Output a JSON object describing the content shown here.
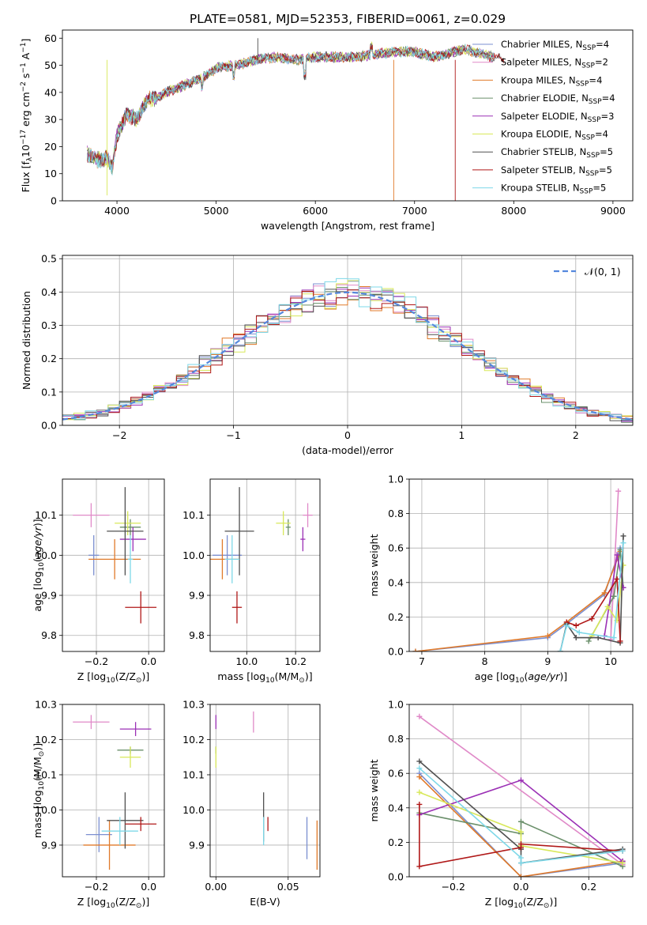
{
  "title": "PLATE=0581, MJD=52353, FIBERID=0061, z=0.029",
  "colors": {
    "Chabrier MILES": "#7b8fd0",
    "Salpeter MILES": "#e08ac8",
    "Kroupa MILES": "#e07a2a",
    "Chabrier ELODIE": "#6a8f6a",
    "Salpeter ELODIE": "#9b30b5",
    "Kroupa ELODIE": "#d8e85a",
    "Chabrier STELIB": "#505050",
    "Salpeter STELIB": "#b01818",
    "Kroupa STELIB": "#7ed8e8"
  },
  "legend": {
    "prefix": "N",
    "sub": "SSP",
    "entries": [
      {
        "name": "Chabrier MILES",
        "n": "4"
      },
      {
        "name": "Salpeter MILES",
        "n": "2"
      },
      {
        "name": "Kroupa MILES",
        "n": "4"
      },
      {
        "name": "Chabrier ELODIE",
        "n": "4"
      },
      {
        "name": "Salpeter ELODIE",
        "n": "3"
      },
      {
        "name": "Kroupa ELODIE",
        "n": "4"
      },
      {
        "name": "Chabrier STELIB",
        "n": "5"
      },
      {
        "name": "Salpeter STELIB",
        "n": "5"
      },
      {
        "name": "Kroupa STELIB",
        "n": "5"
      }
    ]
  },
  "normal_label": "𝒩(0, 1)",
  "chart_data": [
    {
      "id": "spectrum",
      "type": "line",
      "xlabel": "wavelength [Angstrom, rest frame]",
      "ylabel": {
        "a": "Flux [f",
        "b": "λ",
        "c": "10",
        "d": "−17",
        "e": " erg cm",
        "f": "−2",
        "g": " s",
        "h": "−1",
        "i": " A",
        "j": "−1",
        "k": "]"
      },
      "xlim": [
        3450,
        9200
      ],
      "ylim": [
        0,
        63
      ],
      "xticks": [
        "4000",
        "5000",
        "6000",
        "7000",
        "8000",
        "9000"
      ],
      "yticks": [
        "0",
        "10",
        "20",
        "30",
        "40",
        "50",
        "60"
      ],
      "continuum": {
        "x": [
          3700,
          3800,
          3900,
          3950,
          4000,
          4100,
          4200,
          4300,
          4400,
          4500,
          4700,
          4900,
          5000,
          5200,
          5400,
          5600,
          5800,
          6000,
          6200,
          6400,
          6600,
          6800,
          7000,
          7200,
          7300,
          7400,
          7500,
          7600,
          7700,
          7800,
          7900
        ],
        "y": [
          17,
          15,
          16,
          12,
          24,
          32,
          30,
          37,
          38,
          40,
          43,
          46,
          49,
          50,
          52,
          53,
          52,
          53,
          53,
          53,
          54,
          55,
          55,
          53,
          54,
          55,
          56,
          55,
          54,
          53,
          52
        ]
      },
      "x_end": [
        7800,
        7800,
        7800,
        7800,
        7800,
        7800,
        7900,
        7900,
        7800
      ],
      "spikes": [
        {
          "x": 5420,
          "y": 60,
          "series": "Chabrier STELIB"
        },
        {
          "x": 6790,
          "y": 0,
          "series": "Kroupa MILES"
        },
        {
          "x": 7410,
          "y": 0,
          "series": "Salpeter STELIB"
        },
        {
          "x": 3900,
          "y": 2,
          "series": "Kroupa ELODIE"
        }
      ]
    },
    {
      "id": "residuals",
      "type": "step",
      "xlabel": "(data-model)/error",
      "ylabel": "Normed distribution",
      "xlim": [
        -2.5,
        2.5
      ],
      "ylim": [
        0,
        0.51
      ],
      "xticks": [
        "−2",
        "−1",
        "0",
        "1",
        "2"
      ],
      "yticks": [
        "0.0",
        "0.1",
        "0.2",
        "0.3",
        "0.4",
        "0.5"
      ],
      "bin_width": 0.1
    },
    {
      "id": "age-vs-z",
      "type": "errorbar",
      "xlabel": {
        "a": "Z [log",
        "b": "10",
        "c": "(Z/Z",
        "d": "⊙",
        "e": ")]"
      },
      "ylabel": {
        "a": "age  [log",
        "b": "10",
        "c": "(",
        "d": "age/yr",
        "e": ")]"
      },
      "xlim": [
        -0.33,
        0.06
      ],
      "ylim": [
        9.76,
        10.19
      ],
      "xticks": [
        "−0.2",
        "0.0"
      ],
      "yticks": [
        "9.8",
        "9.9",
        "10.0",
        "10.1"
      ],
      "points": [
        {
          "series": "Chabrier MILES",
          "x": -0.21,
          "xerr": 0.02,
          "y": 10.0,
          "yerr": 0.05
        },
        {
          "series": "Salpeter MILES",
          "x": -0.22,
          "xerr": 0.07,
          "y": 10.1,
          "yerr": 0.03
        },
        {
          "series": "Kroupa MILES",
          "x": -0.13,
          "xerr": 0.1,
          "y": 9.99,
          "yerr": 0.05
        },
        {
          "series": "Chabrier ELODIE",
          "x": -0.07,
          "xerr": 0.04,
          "y": 10.07,
          "yerr": 0.02
        },
        {
          "series": "Salpeter ELODIE",
          "x": -0.06,
          "xerr": 0.05,
          "y": 10.04,
          "yerr": 0.03
        },
        {
          "series": "Kroupa ELODIE",
          "x": -0.08,
          "xerr": 0.05,
          "y": 10.08,
          "yerr": 0.03
        },
        {
          "series": "Chabrier STELIB",
          "x": -0.09,
          "xerr": 0.07,
          "y": 10.06,
          "yerr": 0.11
        },
        {
          "series": "Salpeter STELIB",
          "x": -0.03,
          "xerr": 0.06,
          "y": 9.87,
          "yerr": 0.04
        },
        {
          "series": "Kroupa STELIB",
          "x": -0.07,
          "xerr": 0.01,
          "y": 9.99,
          "yerr": 0.06
        }
      ]
    },
    {
      "id": "age-vs-mass",
      "type": "errorbar",
      "xlabel": {
        "a": "mass [log",
        "b": "10",
        "c": "(M/M",
        "d": "⊙",
        "e": ")]"
      },
      "ylabel": "",
      "xlim": [
        9.85,
        10.3
      ],
      "ylim": [
        9.76,
        10.19
      ],
      "xticks": [
        "10.0",
        "10.2"
      ],
      "yticks": [
        "9.8",
        "9.9",
        "10.0",
        "10.1"
      ],
      "points": [
        {
          "series": "Chabrier MILES",
          "x": 9.92,
          "xerr": 0.06,
          "y": 10.0,
          "yerr": 0.05
        },
        {
          "series": "Salpeter MILES",
          "x": 10.25,
          "xerr": 0.02,
          "y": 10.1,
          "yerr": 0.03
        },
        {
          "series": "Kroupa MILES",
          "x": 9.9,
          "xerr": 0.07,
          "y": 9.99,
          "yerr": 0.05
        },
        {
          "series": "Chabrier ELODIE",
          "x": 10.17,
          "xerr": 0.01,
          "y": 10.07,
          "yerr": 0.02
        },
        {
          "series": "Salpeter ELODIE",
          "x": 10.23,
          "xerr": 0.01,
          "y": 10.04,
          "yerr": 0.03
        },
        {
          "series": "Kroupa ELODIE",
          "x": 10.15,
          "xerr": 0.03,
          "y": 10.08,
          "yerr": 0.03
        },
        {
          "series": "Chabrier STELIB",
          "x": 9.97,
          "xerr": 0.06,
          "y": 10.06,
          "yerr": 0.11
        },
        {
          "series": "Salpeter STELIB",
          "x": 9.96,
          "xerr": 0.02,
          "y": 9.87,
          "yerr": 0.04
        },
        {
          "series": "Kroupa STELIB",
          "x": 9.94,
          "xerr": 0.03,
          "y": 9.99,
          "yerr": 0.06
        }
      ]
    },
    {
      "id": "mass-weight-vs-age",
      "type": "line",
      "xlabel": {
        "a": "age  [log",
        "b": "10",
        "c": "(",
        "d": "age/yr",
        "e": ")]"
      },
      "ylabel": "mass weight",
      "xlim": [
        6.8,
        10.35
      ],
      "ylim": [
        0,
        1
      ],
      "xticks": [
        "7",
        "8",
        "9",
        "10"
      ],
      "yticks": [
        "0.0",
        "0.2",
        "0.4",
        "0.6",
        "0.8",
        "1.0"
      ],
      "series": [
        {
          "name": "Chabrier MILES",
          "x": [
            6.9,
            9.0,
            9.3,
            9.9,
            10.15
          ],
          "y": [
            0.0,
            0.08,
            0.16,
            0.33,
            0.6
          ]
        },
        {
          "name": "Salpeter MILES",
          "x": [
            10.0,
            10.12
          ],
          "y": [
            0.07,
            0.93
          ]
        },
        {
          "name": "Kroupa MILES",
          "x": [
            6.9,
            9.0,
            9.3,
            9.9,
            10.15
          ],
          "y": [
            0.0,
            0.09,
            0.17,
            0.34,
            0.58
          ]
        },
        {
          "name": "Chabrier ELODIE",
          "x": [
            9.65,
            10.05,
            10.15,
            10.2
          ],
          "y": [
            0.06,
            0.32,
            0.59,
            0.37
          ]
        },
        {
          "name": "Salpeter ELODIE",
          "x": [
            9.9,
            10.1,
            10.2
          ],
          "y": [
            0.09,
            0.56,
            0.37
          ]
        },
        {
          "name": "Kroupa ELODIE",
          "x": [
            9.7,
            9.95,
            10.1,
            10.2
          ],
          "y": [
            0.09,
            0.26,
            0.18,
            0.5
          ]
        },
        {
          "name": "Chabrier STELIB",
          "x": [
            9.2,
            9.3,
            9.45,
            9.8,
            10.15,
            10.2
          ],
          "y": [
            0.0,
            0.16,
            0.08,
            0.08,
            0.05,
            0.67
          ]
        },
        {
          "name": "Salpeter STELIB",
          "x": [
            9.3,
            9.45,
            9.7,
            10.1,
            10.15
          ],
          "y": [
            0.17,
            0.15,
            0.19,
            0.42,
            0.06
          ]
        },
        {
          "name": "Kroupa STELIB",
          "x": [
            9.2,
            9.3,
            9.5,
            10.05,
            10.2
          ],
          "y": [
            0.0,
            0.15,
            0.11,
            0.08,
            0.63
          ]
        }
      ]
    },
    {
      "id": "mass-vs-z",
      "type": "errorbar",
      "xlabel": {
        "a": "Z [log",
        "b": "10",
        "c": "(Z/Z",
        "d": "⊙",
        "e": ")]"
      },
      "ylabel": {
        "a": "mass [log",
        "b": "10",
        "c": "(M/M",
        "d": "⊙",
        "e": ")]"
      },
      "xlim": [
        -0.33,
        0.06
      ],
      "ylim": [
        9.81,
        10.3
      ],
      "xticks": [
        "−0.2",
        "0.0"
      ],
      "yticks": [
        "9.9",
        "10.0",
        "10.1",
        "10.2",
        "10.3"
      ],
      "points": [
        {
          "series": "Chabrier MILES",
          "x": -0.19,
          "xerr": 0.05,
          "y": 9.93,
          "yerr": 0.05
        },
        {
          "series": "Salpeter MILES",
          "x": -0.22,
          "xerr": 0.07,
          "y": 10.25,
          "yerr": 0.02
        },
        {
          "series": "Kroupa MILES",
          "x": -0.15,
          "xerr": 0.1,
          "y": 9.9,
          "yerr": 0.07
        },
        {
          "series": "Chabrier ELODIE",
          "x": -0.07,
          "xerr": 0.05,
          "y": 10.17,
          "yerr": 0.01
        },
        {
          "series": "Salpeter ELODIE",
          "x": -0.05,
          "xerr": 0.06,
          "y": 10.23,
          "yerr": 0.02
        },
        {
          "series": "Kroupa ELODIE",
          "x": -0.07,
          "xerr": 0.04,
          "y": 10.15,
          "yerr": 0.03
        },
        {
          "series": "Chabrier STELIB",
          "x": -0.09,
          "xerr": 0.07,
          "y": 9.97,
          "yerr": 0.08
        },
        {
          "series": "Salpeter STELIB",
          "x": -0.03,
          "xerr": 0.06,
          "y": 9.96,
          "yerr": 0.02
        },
        {
          "series": "Kroupa STELIB",
          "x": -0.11,
          "xerr": 0.07,
          "y": 9.94,
          "yerr": 0.04
        }
      ]
    },
    {
      "id": "mass-vs-ebv",
      "type": "errorbar",
      "xlabel": "E(B-V)",
      "ylabel": "",
      "xlim": [
        -0.004,
        0.072
      ],
      "ylim": [
        9.81,
        10.3
      ],
      "xticks": [
        "0.00",
        "0.05"
      ],
      "yticks": [
        "9.9",
        "10.0",
        "10.1",
        "10.2",
        "10.3"
      ],
      "points": [
        {
          "series": "Chabrier MILES",
          "x": 0.063,
          "xerr": 0.0,
          "y": 9.92,
          "yerr": 0.06
        },
        {
          "series": "Salpeter MILES",
          "x": 0.026,
          "xerr": 0.0,
          "y": 10.25,
          "yerr": 0.03
        },
        {
          "series": "Kroupa MILES",
          "x": 0.07,
          "xerr": 0.0,
          "y": 9.9,
          "yerr": 0.07
        },
        {
          "series": "Chabrier ELODIE",
          "x": 0.0,
          "xerr": 0.0,
          "y": 10.17,
          "yerr": 0.01
        },
        {
          "series": "Salpeter ELODIE",
          "x": 0.0,
          "xerr": 0.0,
          "y": 10.25,
          "yerr": 0.02
        },
        {
          "series": "Kroupa ELODIE",
          "x": 0.0,
          "xerr": 0.0,
          "y": 10.15,
          "yerr": 0.03
        },
        {
          "series": "Chabrier STELIB",
          "x": 0.033,
          "xerr": 0.0,
          "y": 9.98,
          "yerr": 0.07
        },
        {
          "series": "Salpeter STELIB",
          "x": 0.036,
          "xerr": 0.0,
          "y": 9.96,
          "yerr": 0.02
        },
        {
          "series": "Kroupa STELIB",
          "x": 0.033,
          "xerr": 0.0,
          "y": 9.94,
          "yerr": 0.04
        }
      ]
    },
    {
      "id": "mass-weight-vs-z",
      "type": "line",
      "xlabel": {
        "a": "Z [log",
        "b": "10",
        "c": "(Z/Z",
        "d": "⊙",
        "e": ")]"
      },
      "ylabel": "mass weight",
      "xlim": [
        -0.33,
        0.33
      ],
      "ylim": [
        0,
        1
      ],
      "xticks": [
        "−0.2",
        "0.0",
        "0.2"
      ],
      "yticks": [
        "0.0",
        "0.2",
        "0.4",
        "0.6",
        "0.8",
        "1.0"
      ],
      "series": [
        {
          "name": "Chabrier MILES",
          "x": [
            -0.3,
            0.0,
            0.3
          ],
          "y": [
            0.6,
            0.0,
            0.08
          ]
        },
        {
          "name": "Salpeter MILES",
          "x": [
            -0.3,
            0.3
          ],
          "y": [
            0.93,
            0.07
          ]
        },
        {
          "name": "Kroupa MILES",
          "x": [
            -0.3,
            0.0,
            0.3
          ],
          "y": [
            0.58,
            0.0,
            0.09
          ]
        },
        {
          "name": "Chabrier ELODIE",
          "x": [
            -0.3,
            0.0,
            0.0,
            0.3
          ],
          "y": [
            0.37,
            0.25,
            0.32,
            0.06
          ]
        },
        {
          "name": "Salpeter ELODIE",
          "x": [
            -0.3,
            0.0,
            0.3
          ],
          "y": [
            0.36,
            0.56,
            0.09
          ]
        },
        {
          "name": "Kroupa ELODIE",
          "x": [
            -0.3,
            0.0,
            0.0,
            0.3
          ],
          "y": [
            0.49,
            0.26,
            0.18,
            0.08
          ]
        },
        {
          "name": "Chabrier STELIB",
          "x": [
            -0.3,
            0.0,
            0.0,
            0.3
          ],
          "y": [
            0.67,
            0.16,
            0.08,
            0.16
          ]
        },
        {
          "name": "Salpeter STELIB",
          "x": [
            -0.3,
            -0.3,
            0.0,
            0.0,
            0.3
          ],
          "y": [
            0.42,
            0.06,
            0.17,
            0.19,
            0.15
          ]
        },
        {
          "name": "Kroupa STELIB",
          "x": [
            -0.3,
            0.0,
            0.0,
            0.3
          ],
          "y": [
            0.63,
            0.11,
            0.08,
            0.15
          ]
        }
      ]
    }
  ]
}
